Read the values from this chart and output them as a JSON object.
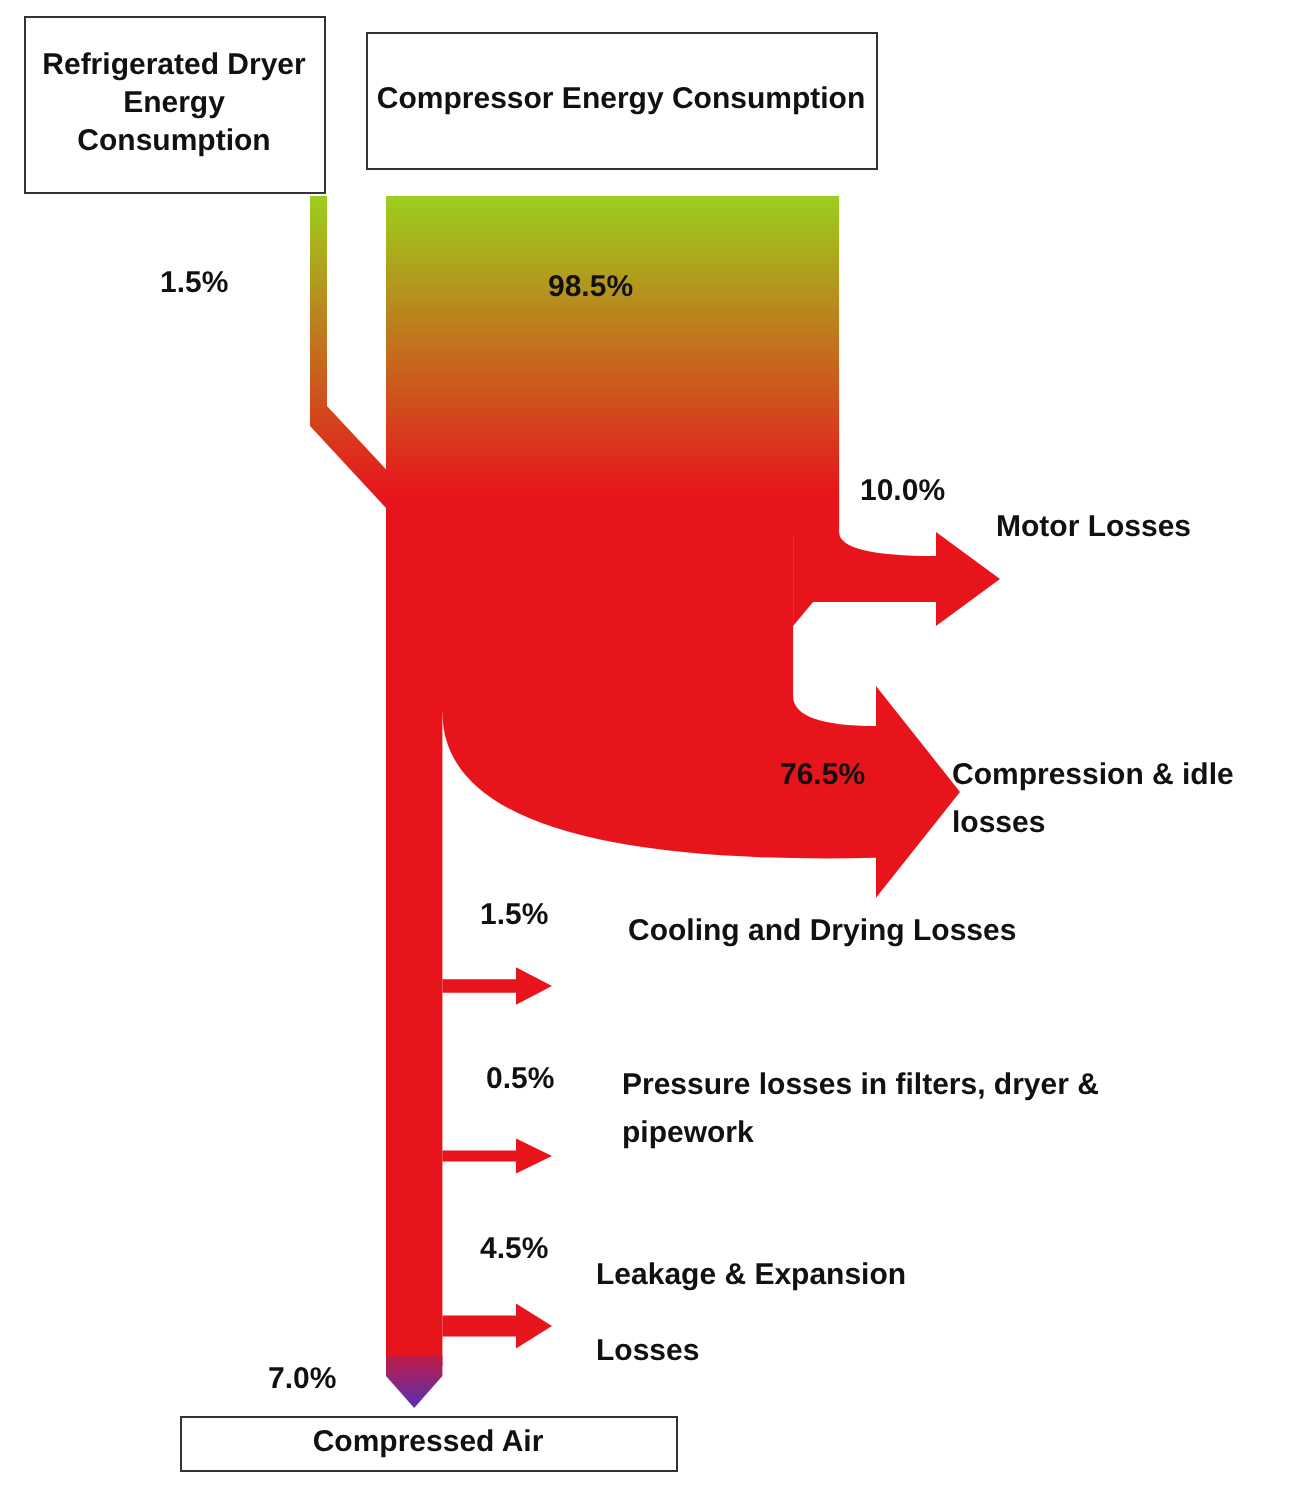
{
  "chart_data": {
    "type": "other",
    "categories": [
      "Refrigerated Dryer Energy Consumption",
      "Compressor Energy Consumption",
      "Motor Losses",
      "Compression & idle losses",
      "Cooling and Drying Losses",
      "Pressure losses in filters, dryer & pipework",
      "Leakage & Expansion Losses",
      "Compressed Air"
    ],
    "values": [
      1.5,
      98.5,
      10.0,
      76.5,
      1.5,
      0.5,
      4.5,
      7.0
    ],
    "value_labels": [
      "1.5%",
      "98.5%",
      "10.0%",
      "76.5%",
      "1.5%",
      "0.5%",
      "4.5%",
      "7.0%"
    ]
  }
}
